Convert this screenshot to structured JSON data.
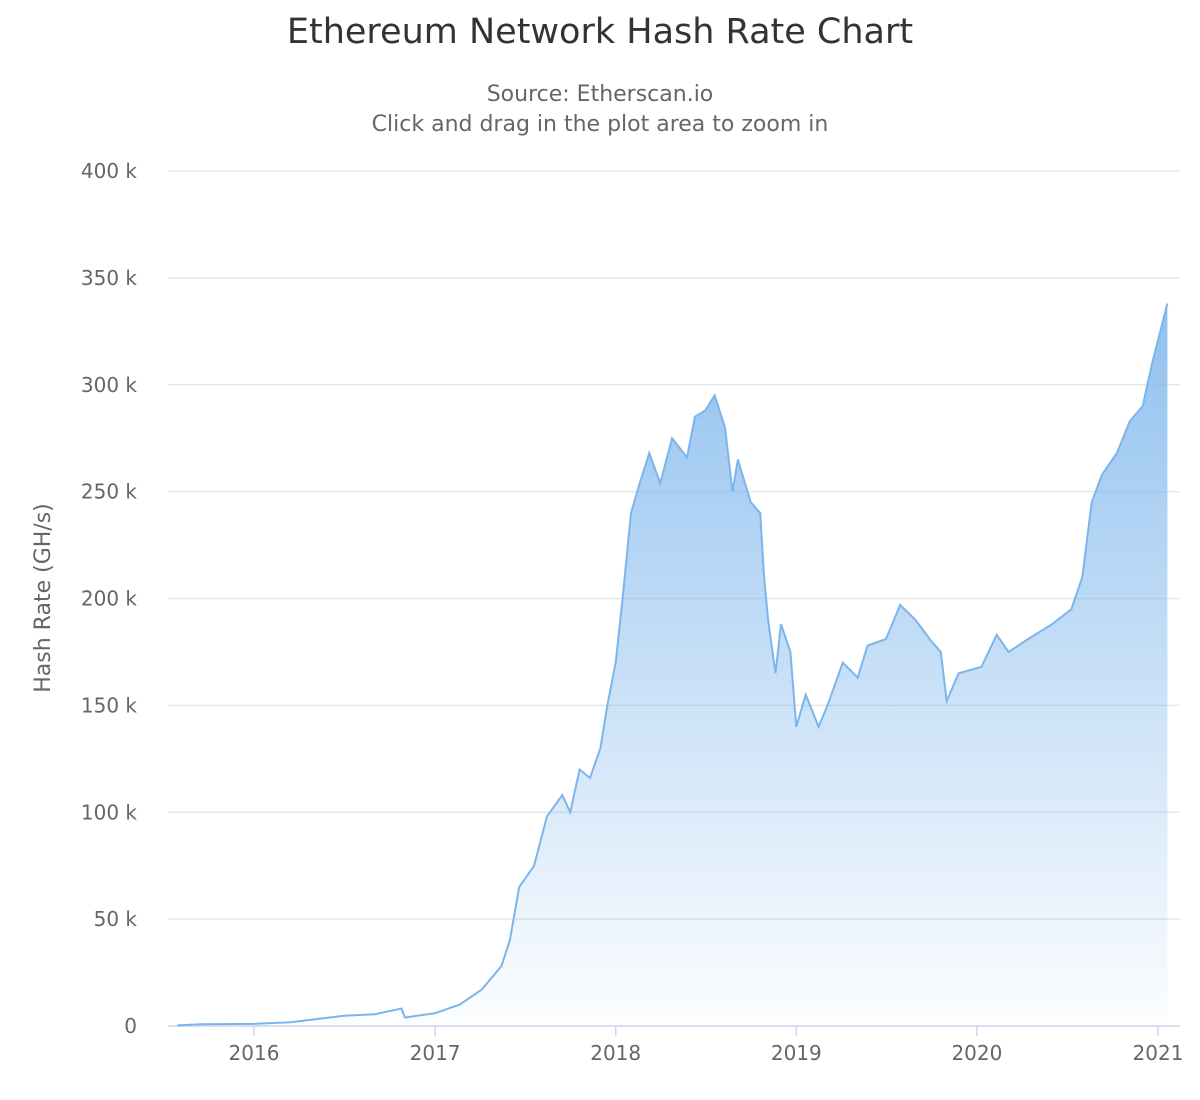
{
  "chart_data": {
    "type": "area",
    "title": "Ethereum Network Hash Rate Chart",
    "subtitle": "Source: Etherscan.io",
    "subtitle2": "Click and drag in the plot area to zoom in",
    "xlabel": "",
    "ylabel": "Hash Rate (GH/s)",
    "ylim": [
      0,
      400000
    ],
    "xlim": [
      "2015-07-30",
      "2021-01-31"
    ],
    "grid": true,
    "legend": "none",
    "color": "#7cb5ec",
    "y_ticks": [
      "0",
      "50 k",
      "100 k",
      "150 k",
      "200 k",
      "250 k",
      "300 k",
      "350 k",
      "400 k"
    ],
    "x_ticks": [
      "2016",
      "2017",
      "2018",
      "2019",
      "2020",
      "2021"
    ],
    "points": [
      [
        "2015-07-30",
        300
      ],
      [
        "2015-09-15",
        800
      ],
      [
        "2016-01-01",
        1000
      ],
      [
        "2016-03-15",
        1800
      ],
      [
        "2016-07-01",
        4800
      ],
      [
        "2016-09-01",
        5500
      ],
      [
        "2016-10-25",
        8200
      ],
      [
        "2016-11-01",
        4000
      ],
      [
        "2017-01-01",
        6000
      ],
      [
        "2017-02-20",
        10000
      ],
      [
        "2017-04-05",
        17000
      ],
      [
        "2017-05-15",
        28000
      ],
      [
        "2017-06-01",
        40000
      ],
      [
        "2017-06-20",
        65000
      ],
      [
        "2017-07-20",
        75000
      ],
      [
        "2017-08-15",
        98000
      ],
      [
        "2017-09-15",
        108000
      ],
      [
        "2017-10-01",
        100000
      ],
      [
        "2017-10-20",
        120000
      ],
      [
        "2017-11-10",
        116000
      ],
      [
        "2017-12-01",
        130000
      ],
      [
        "2017-12-15",
        150000
      ],
      [
        "2018-01-01",
        170000
      ],
      [
        "2018-01-15",
        200000
      ],
      [
        "2018-02-01",
        240000
      ],
      [
        "2018-02-20",
        255000
      ],
      [
        "2018-03-10",
        268000
      ],
      [
        "2018-04-01",
        254000
      ],
      [
        "2018-04-25",
        275000
      ],
      [
        "2018-05-25",
        266000
      ],
      [
        "2018-06-10",
        285000
      ],
      [
        "2018-07-01",
        288000
      ],
      [
        "2018-07-20",
        295000
      ],
      [
        "2018-08-10",
        280000
      ],
      [
        "2018-08-25",
        250000
      ],
      [
        "2018-09-05",
        265000
      ],
      [
        "2018-10-01",
        245000
      ],
      [
        "2018-10-20",
        240000
      ],
      [
        "2018-10-28",
        210000
      ],
      [
        "2018-11-05",
        190000
      ],
      [
        "2018-11-20",
        165000
      ],
      [
        "2018-12-01",
        188000
      ],
      [
        "2018-12-20",
        175000
      ],
      [
        "2019-01-01",
        140000
      ],
      [
        "2019-01-20",
        155000
      ],
      [
        "2019-02-15",
        140000
      ],
      [
        "2019-03-05",
        150000
      ],
      [
        "2019-04-05",
        170000
      ],
      [
        "2019-05-05",
        163000
      ],
      [
        "2019-05-25",
        178000
      ],
      [
        "2019-07-01",
        181000
      ],
      [
        "2019-07-30",
        197000
      ],
      [
        "2019-08-30",
        190000
      ],
      [
        "2019-10-01",
        180000
      ],
      [
        "2019-10-20",
        175000
      ],
      [
        "2019-11-01",
        152000
      ],
      [
        "2019-11-25",
        165000
      ],
      [
        "2020-01-10",
        168000
      ],
      [
        "2020-02-10",
        183000
      ],
      [
        "2020-03-05",
        175000
      ],
      [
        "2020-04-20",
        182000
      ],
      [
        "2020-06-01",
        188000
      ],
      [
        "2020-07-10",
        195000
      ],
      [
        "2020-08-01",
        210000
      ],
      [
        "2020-08-20",
        245000
      ],
      [
        "2020-09-10",
        258000
      ],
      [
        "2020-10-10",
        268000
      ],
      [
        "2020-11-05",
        283000
      ],
      [
        "2020-12-01",
        290000
      ],
      [
        "2020-12-20",
        310000
      ],
      [
        "2021-01-20",
        338000
      ]
    ]
  }
}
